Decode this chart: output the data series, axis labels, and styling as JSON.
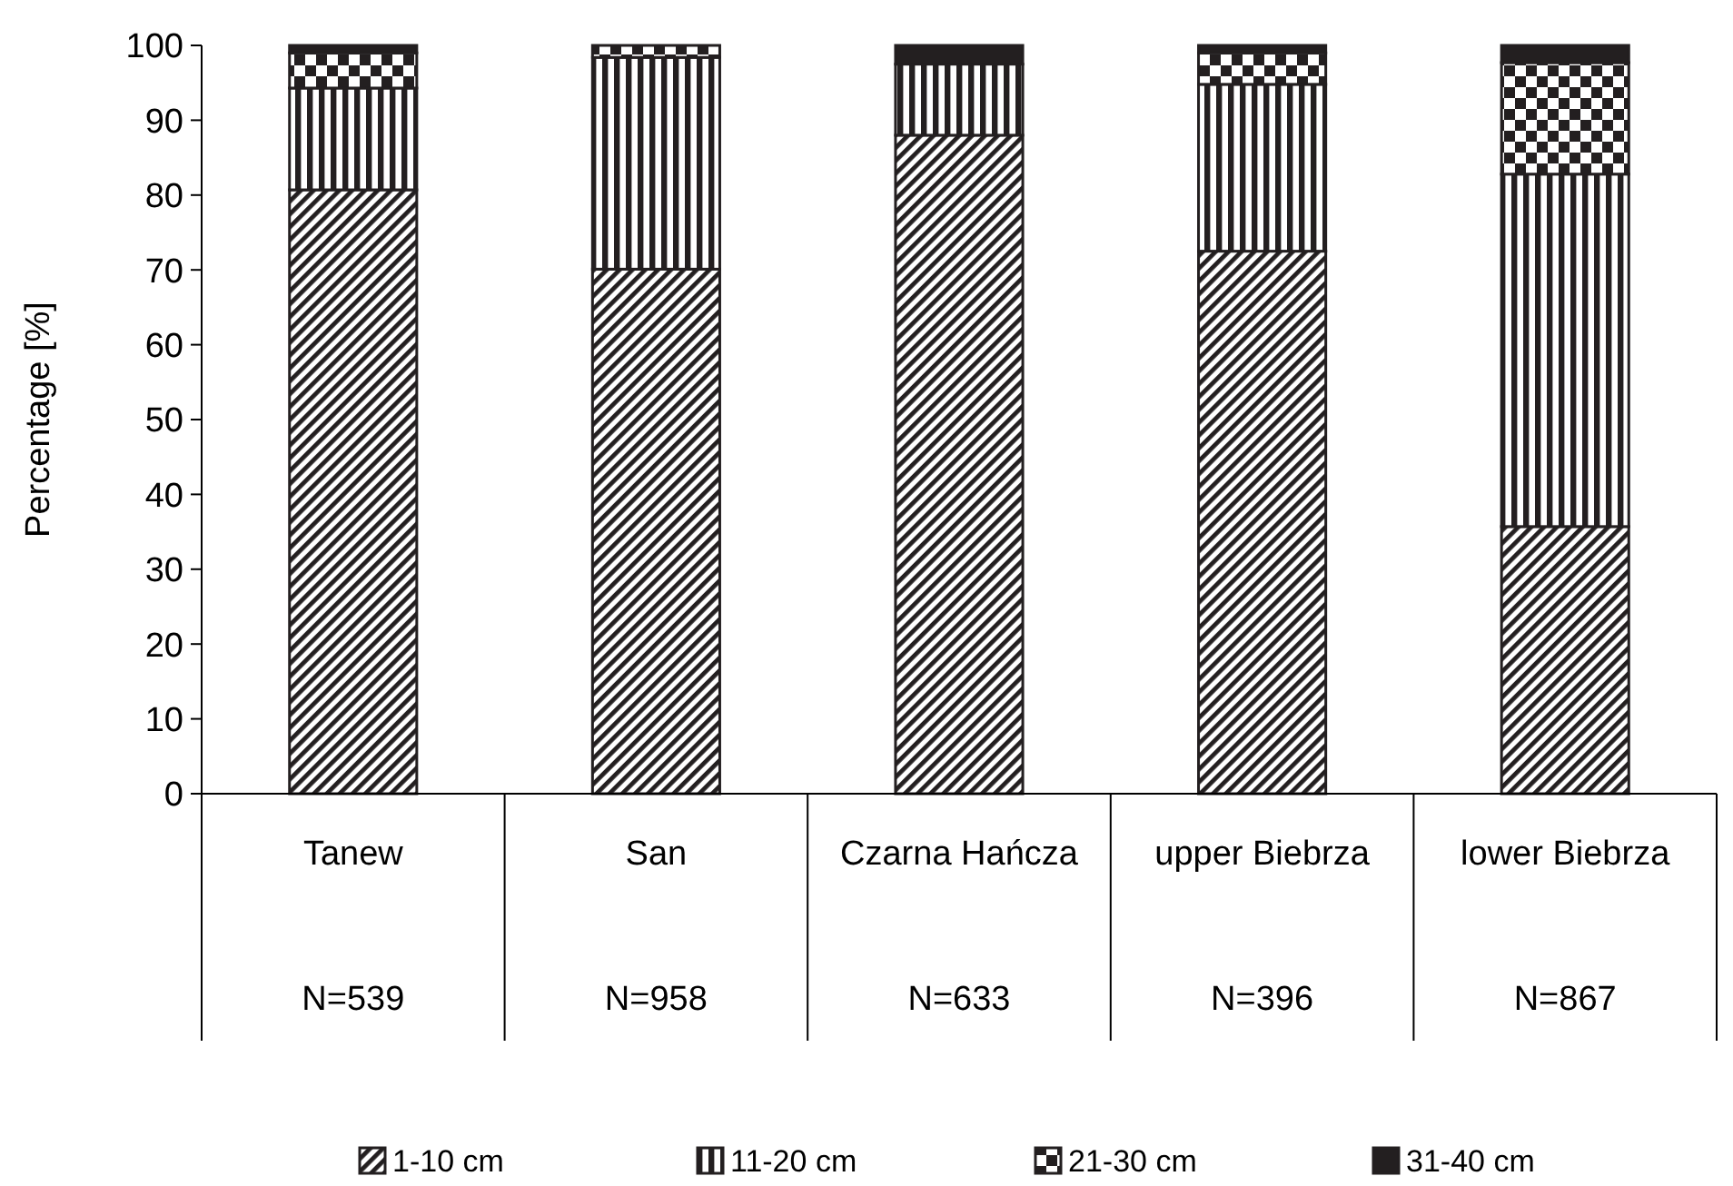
{
  "chart_data": {
    "type": "bar",
    "stacked": true,
    "ylabel": "Percentage [%]",
    "categories": [
      "Tanew",
      "San",
      "Czarna Hańcza",
      "upper Biebrza",
      "lower Biebrza"
    ],
    "series": [
      {
        "name": "1-10 cm",
        "color": "#231f20",
        "values": [
          80.7,
          70.1,
          88.0,
          72.5,
          35.7
        ]
      },
      {
        "name": "11-20 cm",
        "color": "#231f20",
        "values": [
          13.6,
          28.3,
          9.5,
          22.3,
          47.1
        ]
      },
      {
        "name": "21-30 cm",
        "color": "#231f20",
        "values": [
          4.7,
          1.6,
          0,
          4.2,
          14.9
        ]
      },
      {
        "name": "31-40 cm",
        "color": "#231f20",
        "values": [
          1.0,
          0,
          2.5,
          1.0,
          2.3
        ]
      }
    ],
    "ylim": [
      0,
      100
    ],
    "yticks": [
      0,
      10,
      20,
      30,
      40,
      50,
      60,
      70,
      80,
      90,
      100
    ],
    "grid": false,
    "legend": "bottom",
    "annotations": [
      "N=539",
      "N=958",
      "N=633",
      "N=396",
      "N=867"
    ]
  }
}
